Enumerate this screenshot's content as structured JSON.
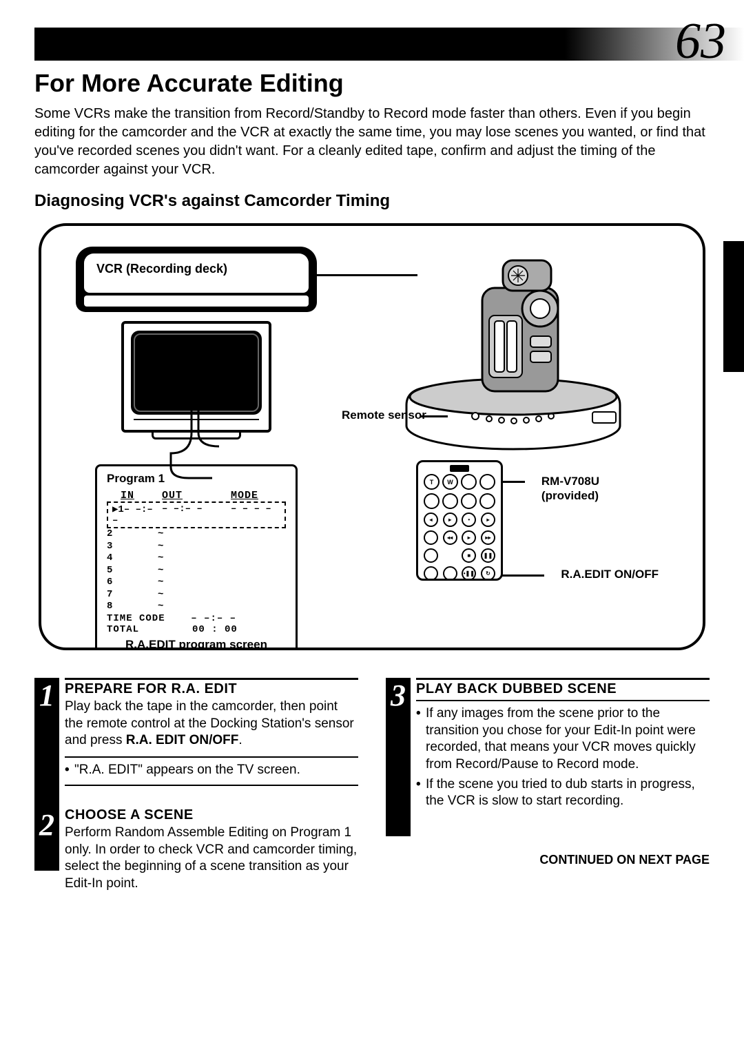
{
  "page_number": "63",
  "section_title": "For More Accurate Editing",
  "intro": "Some VCRs make the transition from Record/Standby to Record mode faster than others. Even if you begin editing for the camcorder and the VCR at exactly the same time, you may lose scenes you wanted, or find that you've recorded scenes you didn't want. For a cleanly edited tape, confirm and adjust the timing of the camcorder against your VCR.",
  "sub_title": "Diagnosing VCR's against Camcorder Timing",
  "diagram": {
    "vcr_label": "VCR (Recording deck)",
    "remote_sensor_label": "Remote sensor",
    "remote_name": "RM-V708U",
    "remote_provided": "(provided)",
    "ra_edit_label": "R.A.EDIT ON/OFF",
    "program": {
      "title": "Program 1",
      "col_in": "IN",
      "col_out": "OUT",
      "col_mode": "MODE",
      "row1_in": "▶1– –:– –",
      "row1_out": "– –:– –",
      "row1_mode": "– – – –",
      "rows": [
        "2",
        "3",
        "4",
        "5",
        "6",
        "7",
        "8"
      ],
      "tilde": "~",
      "time_code_label": "TIME CODE",
      "time_code_val": "– –:– –",
      "total_label": "TOTAL",
      "total_val": "00 : 00",
      "caption": "R.A.EDIT program screen"
    },
    "remote_buttons": {
      "t": "T",
      "w": "W"
    }
  },
  "steps": {
    "s1": {
      "num": "1",
      "title": "PREPARE FOR R.A. EDIT",
      "text_a": "Play back the tape in the camcorder, then point the remote control at the Docking Station's sensor and press ",
      "text_b": "R.A. EDIT ON/OFF",
      "text_c": ".",
      "note": "\"R.A. EDIT\" appears on the TV screen."
    },
    "s2": {
      "num": "2",
      "title": "CHOOSE A SCENE",
      "text": "Perform Random Assemble Editing on Program 1 only. In order to check VCR and camcorder timing, select the beginning of a scene transition as your Edit-In point."
    },
    "s3": {
      "num": "3",
      "title": "PLAY BACK DUBBED SCENE",
      "b1": "If any images from the scene prior to the transition you chose for your Edit-In point were recorded, that means your VCR moves quickly from Record/Pause to Record mode.",
      "b2": "If the scene you tried to dub starts in progress, the VCR is slow to start recording."
    }
  },
  "continued": "CONTINUED ON NEXT PAGE"
}
